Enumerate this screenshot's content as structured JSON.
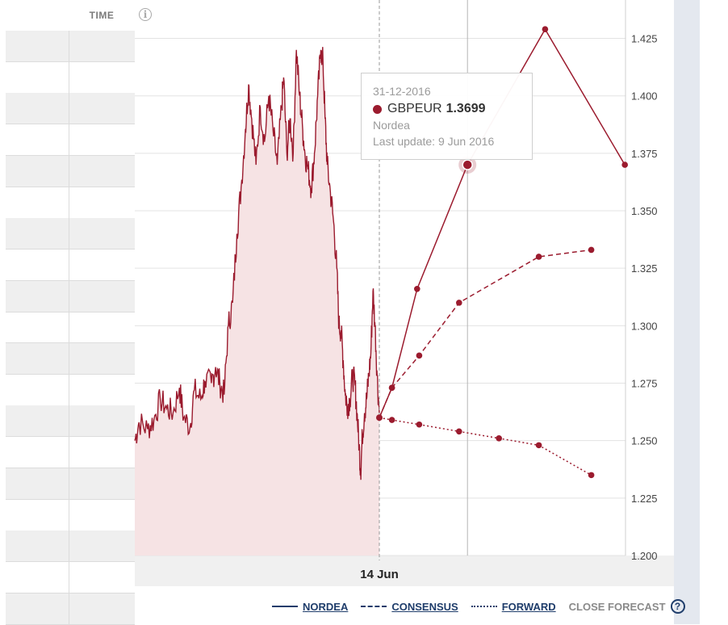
{
  "table": {
    "time_header": "TIME"
  },
  "chart_data": {
    "type": "line",
    "pair": "GBPEUR",
    "y_ticks": [
      "1.425",
      "1.400",
      "1.375",
      "1.350",
      "1.325",
      "1.300",
      "1.275",
      "1.250",
      "1.225",
      "1.200"
    ],
    "ylim": [
      1.2,
      1.4417
    ],
    "x_label": "14 Jun",
    "grid": true,
    "history": {
      "anchors": [
        [
          0,
          1.25
        ],
        [
          0.02,
          1.258
        ],
        [
          0.06,
          1.255
        ],
        [
          0.09,
          1.259
        ],
        [
          0.12,
          1.268
        ],
        [
          0.15,
          1.264
        ],
        [
          0.18,
          1.262
        ],
        [
          0.21,
          1.273
        ],
        [
          0.23,
          1.26
        ],
        [
          0.26,
          1.256
        ],
        [
          0.28,
          1.272
        ],
        [
          0.31,
          1.268
        ],
        [
          0.33,
          1.276
        ],
        [
          0.36,
          1.275
        ],
        [
          0.38,
          1.282
        ],
        [
          0.4,
          1.275
        ],
        [
          0.42,
          1.27
        ],
        [
          0.44,
          1.3
        ],
        [
          0.46,
          1.31
        ],
        [
          0.48,
          1.34
        ],
        [
          0.5,
          1.36
        ],
        [
          0.52,
          1.385
        ],
        [
          0.535,
          1.405
        ],
        [
          0.55,
          1.39
        ],
        [
          0.57,
          1.37
        ],
        [
          0.59,
          1.395
        ],
        [
          0.61,
          1.38
        ],
        [
          0.63,
          1.4
        ],
        [
          0.65,
          1.385
        ],
        [
          0.67,
          1.37
        ],
        [
          0.69,
          1.395
        ],
        [
          0.7,
          1.408
        ],
        [
          0.715,
          1.375
        ],
        [
          0.73,
          1.39
        ],
        [
          0.745,
          1.375
        ],
        [
          0.76,
          1.42
        ],
        [
          0.775,
          1.4
        ],
        [
          0.79,
          1.385
        ],
        [
          0.8,
          1.375
        ],
        [
          0.815,
          1.368
        ],
        [
          0.83,
          1.36
        ],
        [
          0.845,
          1.375
        ],
        [
          0.86,
          1.4
        ],
        [
          0.875,
          1.42
        ],
        [
          0.885,
          1.415
        ],
        [
          0.895,
          1.39
        ],
        [
          0.905,
          1.37
        ],
        [
          0.92,
          1.358
        ],
        [
          0.935,
          1.345
        ],
        [
          0.95,
          1.325
        ],
        [
          0.96,
          1.3
        ],
        [
          0.97,
          1.298
        ],
        [
          0.98,
          1.285
        ],
        [
          0.99,
          1.27
        ],
        [
          1.0,
          1.265
        ],
        [
          1.012,
          1.268
        ],
        [
          1.024,
          1.278
        ],
        [
          1.035,
          1.275
        ],
        [
          1.045,
          1.262
        ],
        [
          1.055,
          1.248
        ],
        [
          1.062,
          1.236
        ],
        [
          1.07,
          1.252
        ],
        [
          1.08,
          1.262
        ],
        [
          1.09,
          1.268
        ],
        [
          1.1,
          1.278
        ],
        [
          1.11,
          1.288
        ],
        [
          1.12,
          1.315
        ],
        [
          1.13,
          1.3
        ],
        [
          1.14,
          1.278
        ],
        [
          1.15,
          1.262
        ]
      ]
    },
    "series": [
      {
        "name": "NORDEA",
        "style": "solid",
        "points": [
          [
            0,
            1.26
          ],
          [
            0.12,
            1.273
          ],
          [
            0.36,
            1.316
          ],
          [
            0.84,
            1.37
          ],
          [
            1.58,
            1.429
          ],
          [
            2.34,
            1.37
          ]
        ]
      },
      {
        "name": "CONSENSUS",
        "style": "dashed",
        "points": [
          [
            0,
            1.26
          ],
          [
            0.12,
            1.273
          ],
          [
            0.38,
            1.287
          ],
          [
            0.76,
            1.31
          ],
          [
            1.52,
            1.33
          ],
          [
            2.02,
            1.333
          ]
        ]
      },
      {
        "name": "FORWARD",
        "style": "dotted",
        "points": [
          [
            0,
            1.26
          ],
          [
            0.12,
            1.259
          ],
          [
            0.38,
            1.257
          ],
          [
            0.76,
            1.254
          ],
          [
            1.14,
            1.251
          ],
          [
            1.52,
            1.248
          ],
          [
            2.02,
            1.235
          ]
        ]
      }
    ],
    "highlight": {
      "series": "NORDEA",
      "point_index": 3
    }
  },
  "tooltip": {
    "date": "31-12-2016",
    "pair": "GBPEUR",
    "value": "1.3699",
    "source": "Nordea",
    "last_update": "Last update: 9 Jun 2016"
  },
  "legend": {
    "items": [
      {
        "label": "NORDEA"
      },
      {
        "label": "CONSENSUS"
      },
      {
        "label": "FORWARD"
      }
    ],
    "close_label": "CLOSE FORECAST",
    "help_symbol": "?"
  },
  "colors": {
    "series": "#9b1b2e",
    "area_fill": "#f6e3e4",
    "link": "#1f3d6b"
  }
}
